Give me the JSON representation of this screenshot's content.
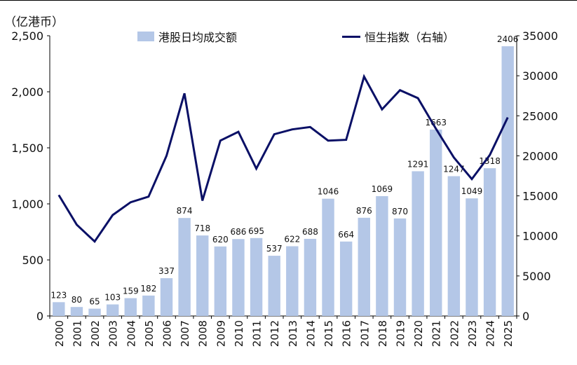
{
  "chart_data": {
    "type": "bar+line",
    "unit_label": "（亿港币）",
    "categories": [
      "2000",
      "2001",
      "2002",
      "2003",
      "2004",
      "2005",
      "2006",
      "2007",
      "2008",
      "2009",
      "2010",
      "2011",
      "2012",
      "2013",
      "2014",
      "2015",
      "2016",
      "2017",
      "2018",
      "2019",
      "2020",
      "2021",
      "2022",
      "2023",
      "2024",
      "2025"
    ],
    "series": [
      {
        "name": "港股日均成交额",
        "type": "bar",
        "axis": "left",
        "color": "#b4c7e7",
        "values": [
          123,
          80,
          65,
          103,
          159,
          182,
          337,
          874,
          718,
          620,
          686,
          695,
          537,
          622,
          688,
          1046,
          664,
          876,
          1069,
          870,
          1291,
          1663,
          1247,
          1049,
          1318,
          2406
        ]
      },
      {
        "name": "恒生指数（右轴）",
        "type": "line",
        "axis": "right",
        "color": "#0a1066",
        "values": [
          15100,
          11400,
          9300,
          12600,
          14200,
          14900,
          20000,
          27800,
          14400,
          21900,
          23000,
          18400,
          22700,
          23300,
          23600,
          21900,
          22000,
          29900,
          25800,
          28200,
          27200,
          23400,
          19800,
          17100,
          20100,
          24800
        ]
      }
    ],
    "y_left": {
      "range": [
        0,
        2500
      ],
      "ticks": [
        "0",
        "500",
        "1,000",
        "1,500",
        "2,000",
        "2,500"
      ]
    },
    "y_right": {
      "range": [
        0,
        35000
      ],
      "ticks": [
        "0",
        "5000",
        "10000",
        "15000",
        "20000",
        "25000",
        "30000",
        "35000"
      ]
    },
    "grid": false,
    "legend_position": "top-center"
  }
}
